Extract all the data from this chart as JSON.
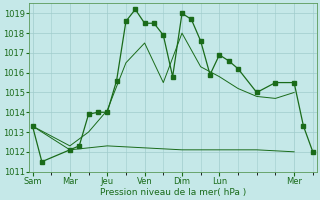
{
  "bg_color": "#c5e8e8",
  "grid_color": "#a0cccc",
  "line_color": "#1a6b1a",
  "xlabel": "Pression niveau de la mer( hPa )",
  "ylim": [
    1011,
    1019.5
  ],
  "yticks": [
    1011,
    1012,
    1013,
    1014,
    1015,
    1016,
    1017,
    1018,
    1019
  ],
  "xtick_labels": [
    "Sam",
    "Mar",
    "Jeu",
    "Ven",
    "Dim",
    "Lun",
    "Mer"
  ],
  "xtick_positions": [
    0,
    2,
    4,
    6,
    8,
    10,
    14
  ],
  "xlim": [
    -0.2,
    15.2
  ],
  "main_line_x": [
    0,
    0.5,
    2,
    2.5,
    3,
    3.5,
    4,
    4.5,
    5,
    5.5,
    6,
    6.5,
    7,
    7.5,
    8,
    8.5,
    9,
    9.5,
    10,
    10.5,
    11,
    12,
    13,
    14,
    14.5,
    15
  ],
  "main_line_y": [
    1013.3,
    1011.5,
    1012.1,
    1012.3,
    1013.9,
    1014.0,
    1014.0,
    1015.6,
    1018.6,
    1019.2,
    1018.5,
    1018.5,
    1017.9,
    1015.8,
    1019.0,
    1018.7,
    1017.6,
    1015.9,
    1016.9,
    1016.6,
    1016.2,
    1015.0,
    1015.5,
    1015.5,
    1013.3,
    1012.0
  ],
  "upper_band_x": [
    0,
    2,
    3,
    4,
    5,
    6,
    7,
    8,
    9,
    10,
    11,
    12,
    13,
    14
  ],
  "upper_band_y": [
    1013.3,
    1012.3,
    1013.0,
    1014.1,
    1016.5,
    1017.5,
    1015.5,
    1018.0,
    1016.3,
    1015.8,
    1015.2,
    1014.8,
    1014.7,
    1015.0
  ],
  "lower_band_x": [
    0,
    2,
    4,
    6,
    8,
    10,
    12,
    14
  ],
  "lower_band_y": [
    1013.3,
    1012.1,
    1012.3,
    1012.2,
    1012.1,
    1012.1,
    1012.1,
    1012.0
  ],
  "title_fontsize": 6.5,
  "tick_fontsize": 6.0
}
